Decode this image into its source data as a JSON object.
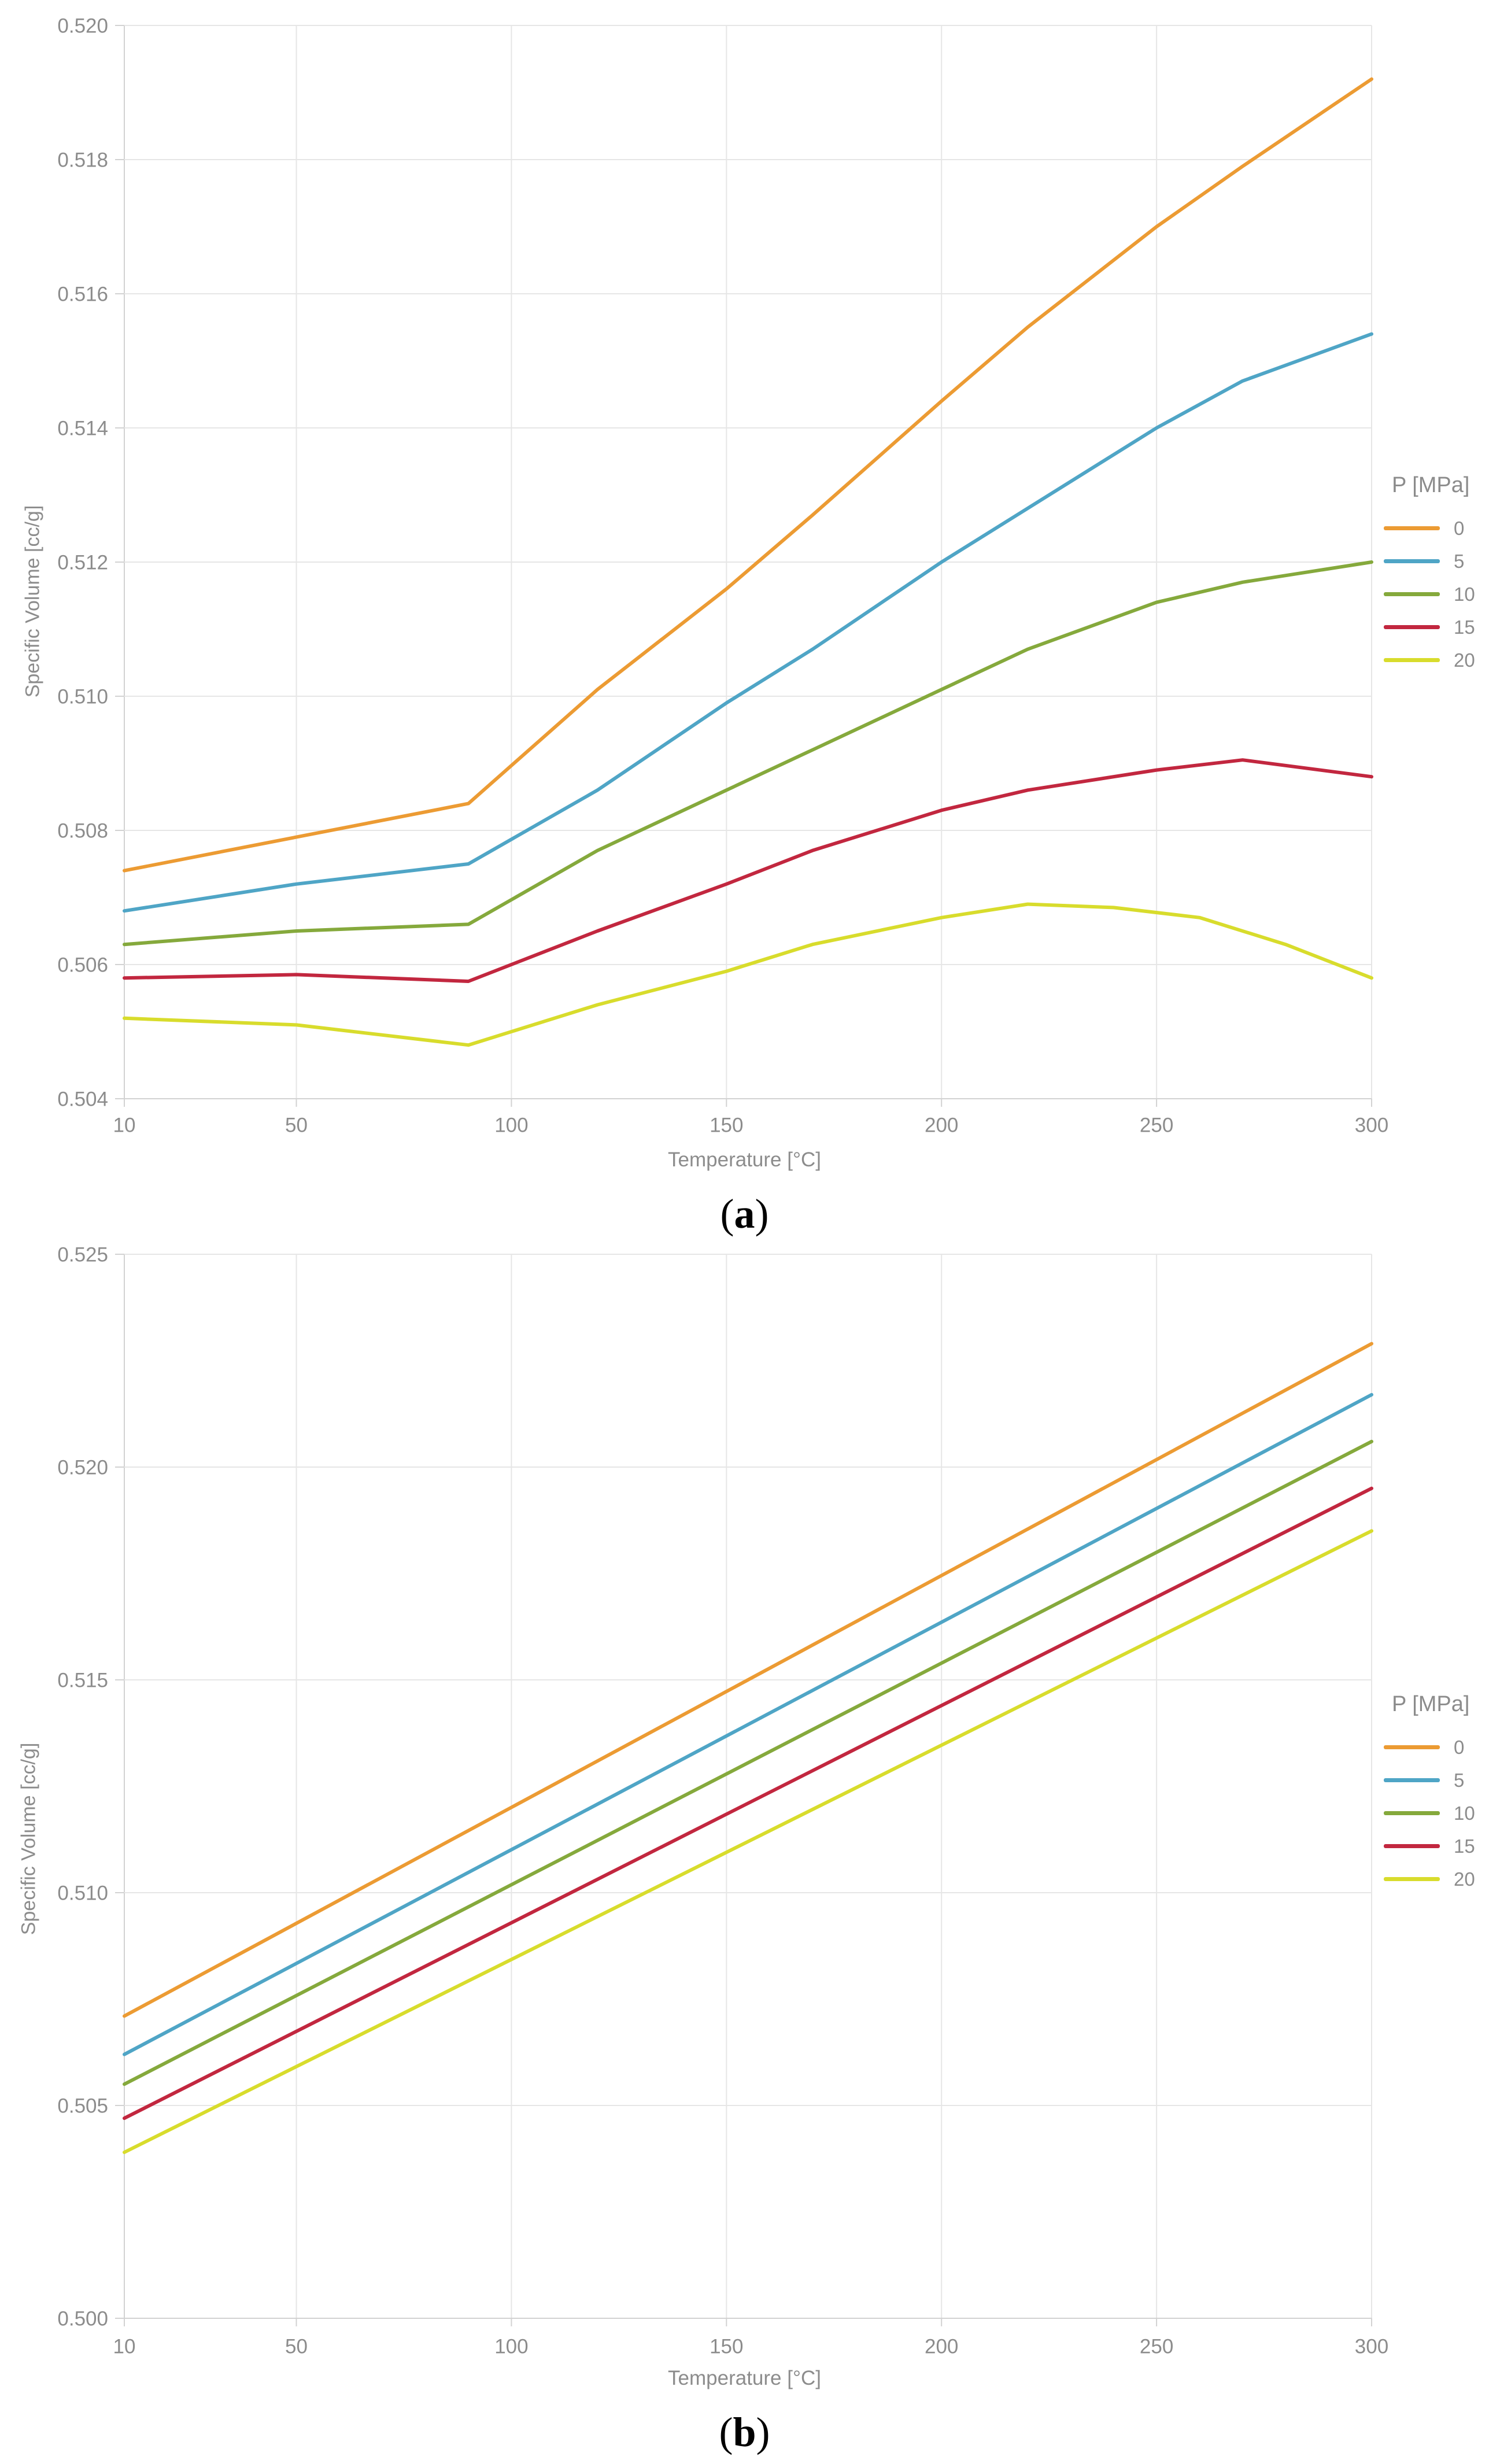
{
  "figure": {
    "y_axis_title": "Specific Volume [cc/g]",
    "x_axis_title": "Temperature [°C]",
    "legend_title": "P [MPa]",
    "colors": {
      "p0": "#EC9B33",
      "p5": "#4FA5C6",
      "p10": "#85A93C",
      "p15": "#C2273F",
      "p20": "#D8DC2C",
      "grid": "#e6e6e6",
      "axis": "#d2d2d2",
      "tick_text": "#8c8c8c",
      "caption_text": "#000000"
    }
  },
  "chart_data": [
    {
      "id": "a",
      "type": "line",
      "caption": {
        "pre": "(",
        "label": "a",
        "post": ")"
      },
      "x_title": "Temperature [°C]",
      "y_title": "Specific Volume [cc/g]",
      "xlabel_ticks": [
        "10",
        "50",
        "100",
        "150",
        "200",
        "250",
        "300"
      ],
      "x": {
        "min": 10,
        "max": 300,
        "ticks": [
          10,
          50,
          100,
          150,
          200,
          250,
          300
        ]
      },
      "y": {
        "min": 0.504,
        "max": 0.52,
        "ticks": [
          {
            "v": 0.52,
            "label": "0.520"
          },
          {
            "v": 0.518,
            "label": "0.518"
          },
          {
            "v": 0.516,
            "label": "0.516"
          },
          {
            "v": 0.514,
            "label": "0.514"
          },
          {
            "v": 0.512,
            "label": "0.512"
          },
          {
            "v": 0.51,
            "label": "0.510"
          },
          {
            "v": 0.508,
            "label": "0.508"
          },
          {
            "v": 0.506,
            "label": "0.506"
          },
          {
            "v": 0.504,
            "label": "0.504"
          }
        ]
      },
      "legend": {
        "title": "P [MPa]",
        "position": "right"
      },
      "grid": true,
      "series": [
        {
          "name": "0",
          "color": "#EC9B33",
          "points": [
            [
              10,
              0.5074
            ],
            [
              50,
              0.5079
            ],
            [
              90,
              0.5084
            ],
            [
              120,
              0.5101
            ],
            [
              150,
              0.5116
            ],
            [
              170,
              0.5127
            ],
            [
              200,
              0.5144
            ],
            [
              220,
              0.5155
            ],
            [
              250,
              0.517
            ],
            [
              270,
              0.5179
            ],
            [
              300,
              0.5192
            ]
          ]
        },
        {
          "name": "5",
          "color": "#4FA5C6",
          "points": [
            [
              10,
              0.5068
            ],
            [
              50,
              0.5072
            ],
            [
              90,
              0.5075
            ],
            [
              120,
              0.5086
            ],
            [
              150,
              0.5099
            ],
            [
              170,
              0.5107
            ],
            [
              200,
              0.512
            ],
            [
              220,
              0.5128
            ],
            [
              250,
              0.514
            ],
            [
              270,
              0.5147
            ],
            [
              300,
              0.5154
            ]
          ]
        },
        {
          "name": "10",
          "color": "#85A93C",
          "points": [
            [
              10,
              0.5063
            ],
            [
              50,
              0.5065
            ],
            [
              90,
              0.5066
            ],
            [
              120,
              0.5077
            ],
            [
              150,
              0.5086
            ],
            [
              170,
              0.5092
            ],
            [
              200,
              0.5101
            ],
            [
              220,
              0.5107
            ],
            [
              250,
              0.5114
            ],
            [
              270,
              0.5117
            ],
            [
              300,
              0.512
            ]
          ]
        },
        {
          "name": "15",
          "color": "#C2273F",
          "points": [
            [
              10,
              0.5058
            ],
            [
              50,
              0.50585
            ],
            [
              90,
              0.50575
            ],
            [
              120,
              0.5065
            ],
            [
              150,
              0.5072
            ],
            [
              170,
              0.5077
            ],
            [
              200,
              0.5083
            ],
            [
              220,
              0.5086
            ],
            [
              250,
              0.5089
            ],
            [
              270,
              0.50905
            ],
            [
              300,
              0.5088
            ]
          ]
        },
        {
          "name": "20",
          "color": "#D8DC2C",
          "points": [
            [
              10,
              0.5052
            ],
            [
              50,
              0.5051
            ],
            [
              90,
              0.5048
            ],
            [
              120,
              0.5054
            ],
            [
              150,
              0.5059
            ],
            [
              170,
              0.5063
            ],
            [
              200,
              0.5067
            ],
            [
              220,
              0.5069
            ],
            [
              240,
              0.50685
            ],
            [
              260,
              0.5067
            ],
            [
              280,
              0.5063
            ],
            [
              300,
              0.5058
            ]
          ]
        }
      ]
    },
    {
      "id": "b",
      "type": "line",
      "caption": {
        "pre": "(",
        "label": "b",
        "post": ")"
      },
      "x_title": "Temperature [°C]",
      "y_title": "Specific Volume [cc/g]",
      "xlabel_ticks": [
        "10",
        "50",
        "100",
        "150",
        "200",
        "250",
        "300"
      ],
      "x": {
        "min": 10,
        "max": 300,
        "ticks": [
          10,
          50,
          100,
          150,
          200,
          250,
          300
        ]
      },
      "y": {
        "min": 0.5,
        "max": 0.525,
        "ticks": [
          {
            "v": 0.525,
            "label": "0.525"
          },
          {
            "v": 0.52,
            "label": "0.520"
          },
          {
            "v": 0.515,
            "label": "0.515"
          },
          {
            "v": 0.51,
            "label": "0.510"
          },
          {
            "v": 0.505,
            "label": "0.505"
          },
          {
            "v": 0.5,
            "label": "0.500"
          }
        ]
      },
      "legend": {
        "title": "P [MPa]",
        "position": "right"
      },
      "grid": true,
      "series": [
        {
          "name": "0",
          "color": "#EC9B33",
          "points": [
            [
              10,
              0.5071
            ],
            [
              300,
              0.5229
            ]
          ]
        },
        {
          "name": "5",
          "color": "#4FA5C6",
          "points": [
            [
              10,
              0.5062
            ],
            [
              300,
              0.5217
            ]
          ]
        },
        {
          "name": "10",
          "color": "#85A93C",
          "points": [
            [
              10,
              0.5055
            ],
            [
              300,
              0.5206
            ]
          ]
        },
        {
          "name": "15",
          "color": "#C2273F",
          "points": [
            [
              10,
              0.5047
            ],
            [
              300,
              0.5195
            ]
          ]
        },
        {
          "name": "20",
          "color": "#D8DC2C",
          "points": [
            [
              10,
              0.5039
            ],
            [
              300,
              0.5185
            ]
          ]
        }
      ]
    }
  ]
}
